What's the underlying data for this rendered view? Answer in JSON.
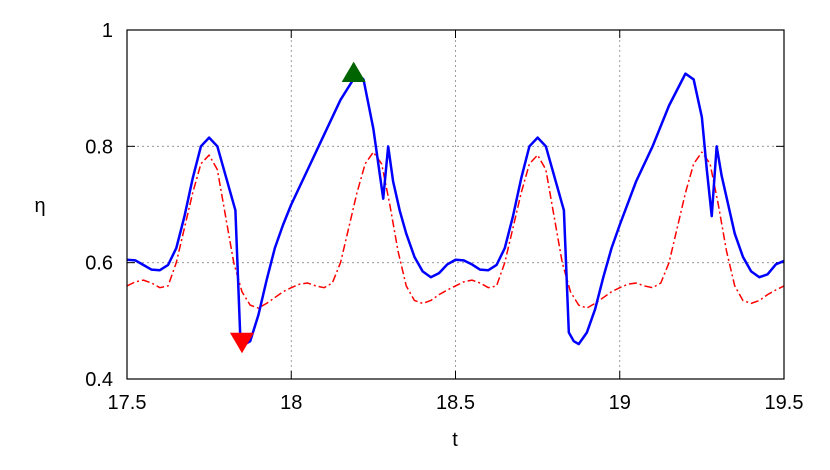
{
  "chart_data": {
    "type": "line",
    "xlabel": "t",
    "ylabel": "η",
    "xlim": [
      17.5,
      19.5
    ],
    "ylim": [
      0.4,
      1
    ],
    "xticks": [
      17.5,
      18,
      18.5,
      19,
      19.5
    ],
    "yticks": [
      0.4,
      0.6,
      0.8,
      1
    ],
    "grid": true,
    "series": [
      {
        "color": "#0000ff",
        "line_style": "solid",
        "x": [
          17.5,
          17.525,
          17.55,
          17.575,
          17.6,
          17.625,
          17.65,
          17.675,
          17.7,
          17.725,
          17.75,
          17.775,
          17.8,
          17.83,
          17.845,
          17.86,
          17.875,
          17.9,
          17.925,
          17.95,
          17.975,
          18.0,
          18.05,
          18.1,
          18.15,
          18.2,
          18.22,
          18.25,
          18.27,
          18.28,
          18.295,
          18.31,
          18.33,
          18.35,
          18.375,
          18.4,
          18.425,
          18.45,
          18.475,
          18.5,
          18.525,
          18.55,
          18.575,
          18.6,
          18.625,
          18.65,
          18.675,
          18.7,
          18.725,
          18.75,
          18.775,
          18.8,
          18.83,
          18.845,
          18.86,
          18.875,
          18.9,
          18.925,
          18.95,
          18.975,
          19.0,
          19.05,
          19.1,
          19.15,
          19.2,
          19.225,
          19.25,
          19.265,
          19.28,
          19.295,
          19.31,
          19.33,
          19.35,
          19.375,
          19.4,
          19.425,
          19.45,
          19.475,
          19.5
        ],
        "values": [
          0.605,
          0.604,
          0.596,
          0.588,
          0.587,
          0.596,
          0.625,
          0.68,
          0.745,
          0.8,
          0.815,
          0.8,
          0.75,
          0.69,
          0.47,
          0.46,
          0.465,
          0.51,
          0.57,
          0.625,
          0.665,
          0.7,
          0.76,
          0.82,
          0.88,
          0.925,
          0.915,
          0.83,
          0.75,
          0.71,
          0.8,
          0.74,
          0.69,
          0.65,
          0.61,
          0.585,
          0.575,
          0.582,
          0.597,
          0.605,
          0.604,
          0.597,
          0.588,
          0.587,
          0.596,
          0.625,
          0.68,
          0.745,
          0.8,
          0.815,
          0.8,
          0.75,
          0.69,
          0.48,
          0.465,
          0.46,
          0.48,
          0.52,
          0.575,
          0.625,
          0.665,
          0.74,
          0.8,
          0.87,
          0.925,
          0.915,
          0.85,
          0.76,
          0.68,
          0.8,
          0.75,
          0.7,
          0.65,
          0.61,
          0.585,
          0.575,
          0.58,
          0.597,
          0.603
        ]
      },
      {
        "color": "#ff0000",
        "line_style": "dashdot",
        "x": [
          17.5,
          17.525,
          17.55,
          17.575,
          17.6,
          17.625,
          17.65,
          17.675,
          17.7,
          17.725,
          17.75,
          17.775,
          17.8,
          17.825,
          17.85,
          17.875,
          17.9,
          17.925,
          17.95,
          17.975,
          18.0,
          18.025,
          18.05,
          18.075,
          18.1,
          18.125,
          18.15,
          18.175,
          18.2,
          18.225,
          18.25,
          18.275,
          18.3,
          18.325,
          18.35,
          18.375,
          18.4,
          18.425,
          18.45,
          18.475,
          18.5,
          18.525,
          18.55,
          18.575,
          18.6,
          18.625,
          18.65,
          18.675,
          18.7,
          18.725,
          18.75,
          18.775,
          18.8,
          18.825,
          18.85,
          18.875,
          18.9,
          18.925,
          18.95,
          18.975,
          19.0,
          19.025,
          19.05,
          19.075,
          19.1,
          19.125,
          19.15,
          19.175,
          19.2,
          19.225,
          19.25,
          19.275,
          19.3,
          19.325,
          19.35,
          19.375,
          19.4,
          19.425,
          19.45,
          19.475,
          19.5
        ],
        "values": [
          0.56,
          0.567,
          0.57,
          0.565,
          0.557,
          0.56,
          0.6,
          0.66,
          0.72,
          0.77,
          0.785,
          0.76,
          0.68,
          0.6,
          0.55,
          0.527,
          0.522,
          0.53,
          0.54,
          0.55,
          0.557,
          0.563,
          0.565,
          0.56,
          0.557,
          0.565,
          0.6,
          0.66,
          0.72,
          0.77,
          0.79,
          0.77,
          0.7,
          0.62,
          0.56,
          0.535,
          0.53,
          0.535,
          0.545,
          0.553,
          0.56,
          0.567,
          0.57,
          0.565,
          0.557,
          0.56,
          0.6,
          0.66,
          0.72,
          0.77,
          0.785,
          0.76,
          0.68,
          0.6,
          0.55,
          0.527,
          0.522,
          0.53,
          0.54,
          0.55,
          0.557,
          0.563,
          0.565,
          0.56,
          0.557,
          0.565,
          0.6,
          0.66,
          0.72,
          0.77,
          0.79,
          0.77,
          0.7,
          0.62,
          0.56,
          0.535,
          0.53,
          0.535,
          0.545,
          0.553,
          0.56
        ]
      }
    ],
    "markers": [
      {
        "shape": "triangle-up",
        "color": "#006400",
        "x": 18.19,
        "y": 0.925
      },
      {
        "shape": "triangle-down",
        "color": "#ff0000",
        "x": 17.85,
        "y": 0.465
      }
    ]
  }
}
